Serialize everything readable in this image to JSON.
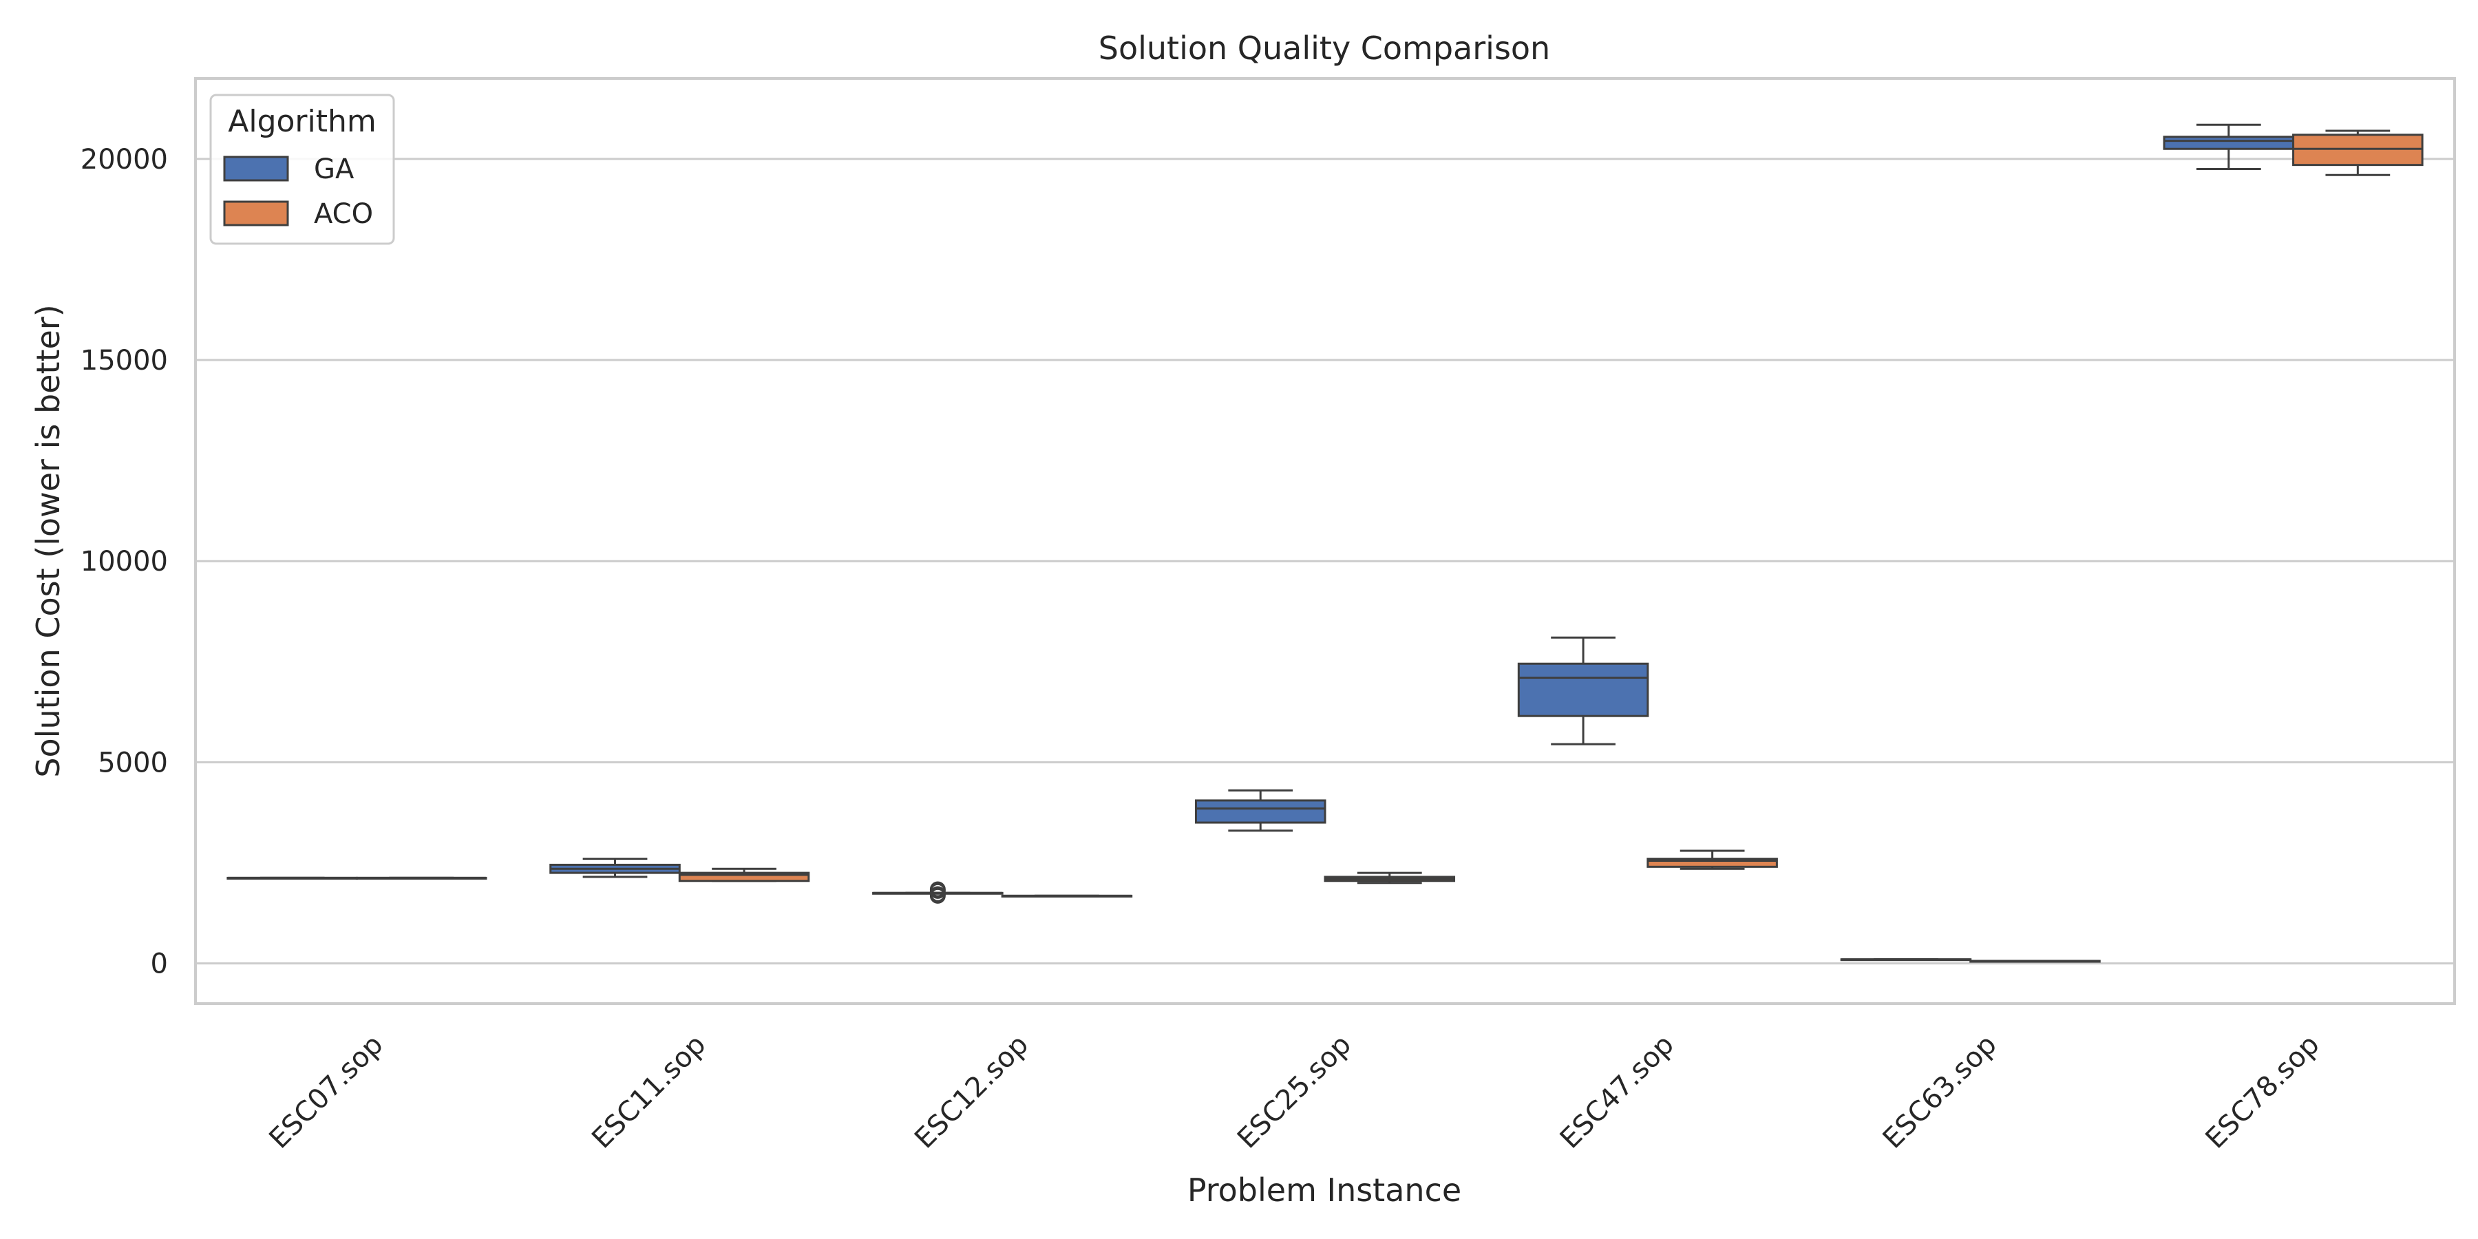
{
  "chart_data": {
    "type": "box",
    "title": "Solution Quality Comparison",
    "xlabel": "Problem Instance",
    "ylabel": "Solution Cost (lower is better)",
    "ylim": [
      -1000,
      22000
    ],
    "yticks": [
      0,
      5000,
      10000,
      15000,
      20000
    ],
    "grid": true,
    "legend": {
      "title": "Algorithm",
      "placement": "top-left"
    },
    "categories": [
      "ESC07.sop",
      "ESC11.sop",
      "ESC12.sop",
      "ESC25.sop",
      "ESC47.sop",
      "ESC63.sop",
      "ESC78.sop"
    ],
    "series": [
      {
        "name": "GA",
        "color": "#4c72b0",
        "boxes": [
          {
            "whisker_low": 2125,
            "q1": 2125,
            "median": 2125,
            "q3": 2125,
            "whisker_high": 2125,
            "outliers": []
          },
          {
            "whisker_low": 2150,
            "q1": 2250,
            "median": 2350,
            "q3": 2450,
            "whisker_high": 2600,
            "outliers": []
          },
          {
            "whisker_low": 1750,
            "q1": 1750,
            "median": 1750,
            "q3": 1750,
            "whisker_high": 1750,
            "outliers": [
              1680,
              1720,
              1800,
              1840
            ]
          },
          {
            "whisker_low": 3300,
            "q1": 3500,
            "median": 3850,
            "q3": 4050,
            "whisker_high": 4300,
            "outliers": []
          },
          {
            "whisker_low": 5450,
            "q1": 6150,
            "median": 7100,
            "q3": 7450,
            "whisker_high": 8100,
            "outliers": []
          },
          {
            "whisker_low": 100,
            "q1": 100,
            "median": 100,
            "q3": 100,
            "whisker_high": 100,
            "outliers": []
          },
          {
            "whisker_low": 19750,
            "q1": 20250,
            "median": 20450,
            "q3": 20550,
            "whisker_high": 20850,
            "outliers": []
          }
        ]
      },
      {
        "name": "ACO",
        "color": "#dd8452",
        "boxes": [
          {
            "whisker_low": 2125,
            "q1": 2125,
            "median": 2125,
            "q3": 2125,
            "whisker_high": 2125,
            "outliers": []
          },
          {
            "whisker_low": 2050,
            "q1": 2050,
            "median": 2200,
            "q3": 2250,
            "whisker_high": 2350,
            "outliers": []
          },
          {
            "whisker_low": 1680,
            "q1": 1680,
            "median": 1680,
            "q3": 1680,
            "whisker_high": 1680,
            "outliers": []
          },
          {
            "whisker_low": 2000,
            "q1": 2050,
            "median": 2100,
            "q3": 2150,
            "whisker_high": 2250,
            "outliers": []
          },
          {
            "whisker_low": 2350,
            "q1": 2400,
            "median": 2550,
            "q3": 2600,
            "whisker_high": 2800,
            "outliers": []
          },
          {
            "whisker_low": 60,
            "q1": 60,
            "median": 60,
            "q3": 60,
            "whisker_high": 60,
            "outliers": []
          },
          {
            "whisker_low": 19600,
            "q1": 19850,
            "median": 20250,
            "q3": 20600,
            "whisker_high": 20700,
            "outliers": []
          }
        ]
      }
    ]
  }
}
